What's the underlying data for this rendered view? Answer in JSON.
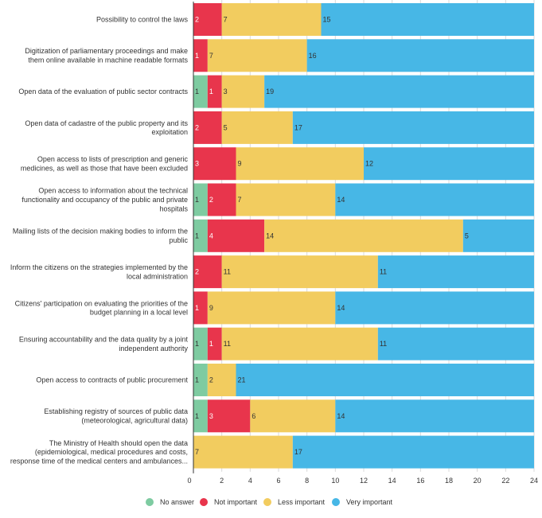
{
  "chart_data": {
    "type": "bar",
    "orientation": "horizontal",
    "stacked": true,
    "categories": [
      "Possibility to control the laws",
      "Digitization of parliamentary proceedings and make them online available in machine readable formats",
      "Open data of the evaluation of public sector contracts",
      "Open data of cadastre of the public property and its exploitation",
      "Open access to lists of prescription and generic medicines, as well as those that have been excluded",
      "Open access to information about the technical functionality and occupancy of the public and private hospitals",
      "Mailing lists of the decision making bodies to inform the public",
      "Inform the citizens on the strategies implemented by the local administration",
      "Citizens' participation on evaluating the priorities of the budget planning in a local level",
      "Ensuring accountability and the data quality by a joint independent authority",
      "Open access to contracts of public procurement",
      "Establishing registry of sources of public data (meteorological, agricultural data)",
      "The Ministry of Health should open the data (epidemiological, medical procedures and costs, response time of the medical centers and ambulances..."
    ],
    "category_lines": [
      [
        "Possibility to control the laws"
      ],
      [
        "Digitization of parliamentary proceedings and make",
        "them online available in machine readable formats"
      ],
      [
        "Open data of the evaluation of public sector contracts"
      ],
      [
        "Open data of cadastre of the public property and its",
        "exploitation"
      ],
      [
        "Open access to lists of prescription and generic",
        "medicines, as well as those that have been excluded"
      ],
      [
        "Open access to information about the technical",
        "functionality and occupancy of the public and private",
        "hospitals"
      ],
      [
        "Mailing lists of the decision making bodies to inform the",
        "public"
      ],
      [
        "Inform the citizens on the strategies implemented by the",
        "local administration"
      ],
      [
        "Citizens' participation on evaluating the priorities of the",
        "budget planning in a local level"
      ],
      [
        "Ensuring accountability and the data quality by a joint",
        "independent authority"
      ],
      [
        "Open access to contracts of public procurement"
      ],
      [
        "Establishing registry of sources of public data",
        "(meteorological, agricultural data)"
      ],
      [
        "The Ministry of Health should open the data",
        "(epidemiological, medical procedures and costs,",
        "response time of the medical centers and ambulances..."
      ]
    ],
    "series": [
      {
        "name": "No answer",
        "color": "#7ecba1",
        "values": [
          0,
          0,
          1,
          0,
          0,
          1,
          1,
          0,
          0,
          1,
          1,
          1,
          0
        ]
      },
      {
        "name": "Not important",
        "color": "#e8354c",
        "values": [
          2,
          1,
          1,
          2,
          3,
          2,
          4,
          2,
          1,
          1,
          0,
          3,
          0
        ]
      },
      {
        "name": "Less important",
        "color": "#f2cc5f",
        "values": [
          7,
          7,
          3,
          5,
          9,
          7,
          14,
          11,
          9,
          11,
          2,
          6,
          7
        ]
      },
      {
        "name": "Very important",
        "color": "#47b7e6",
        "values": [
          15,
          16,
          19,
          17,
          12,
          14,
          5,
          11,
          14,
          11,
          21,
          14,
          17
        ]
      }
    ],
    "xlim": [
      0,
      24
    ],
    "xticks": [
      0,
      2,
      4,
      6,
      8,
      10,
      12,
      14,
      16,
      18,
      20,
      22,
      24
    ],
    "grid": true,
    "legend_position": "bottom-center",
    "title": "",
    "xlabel": "",
    "ylabel": ""
  }
}
